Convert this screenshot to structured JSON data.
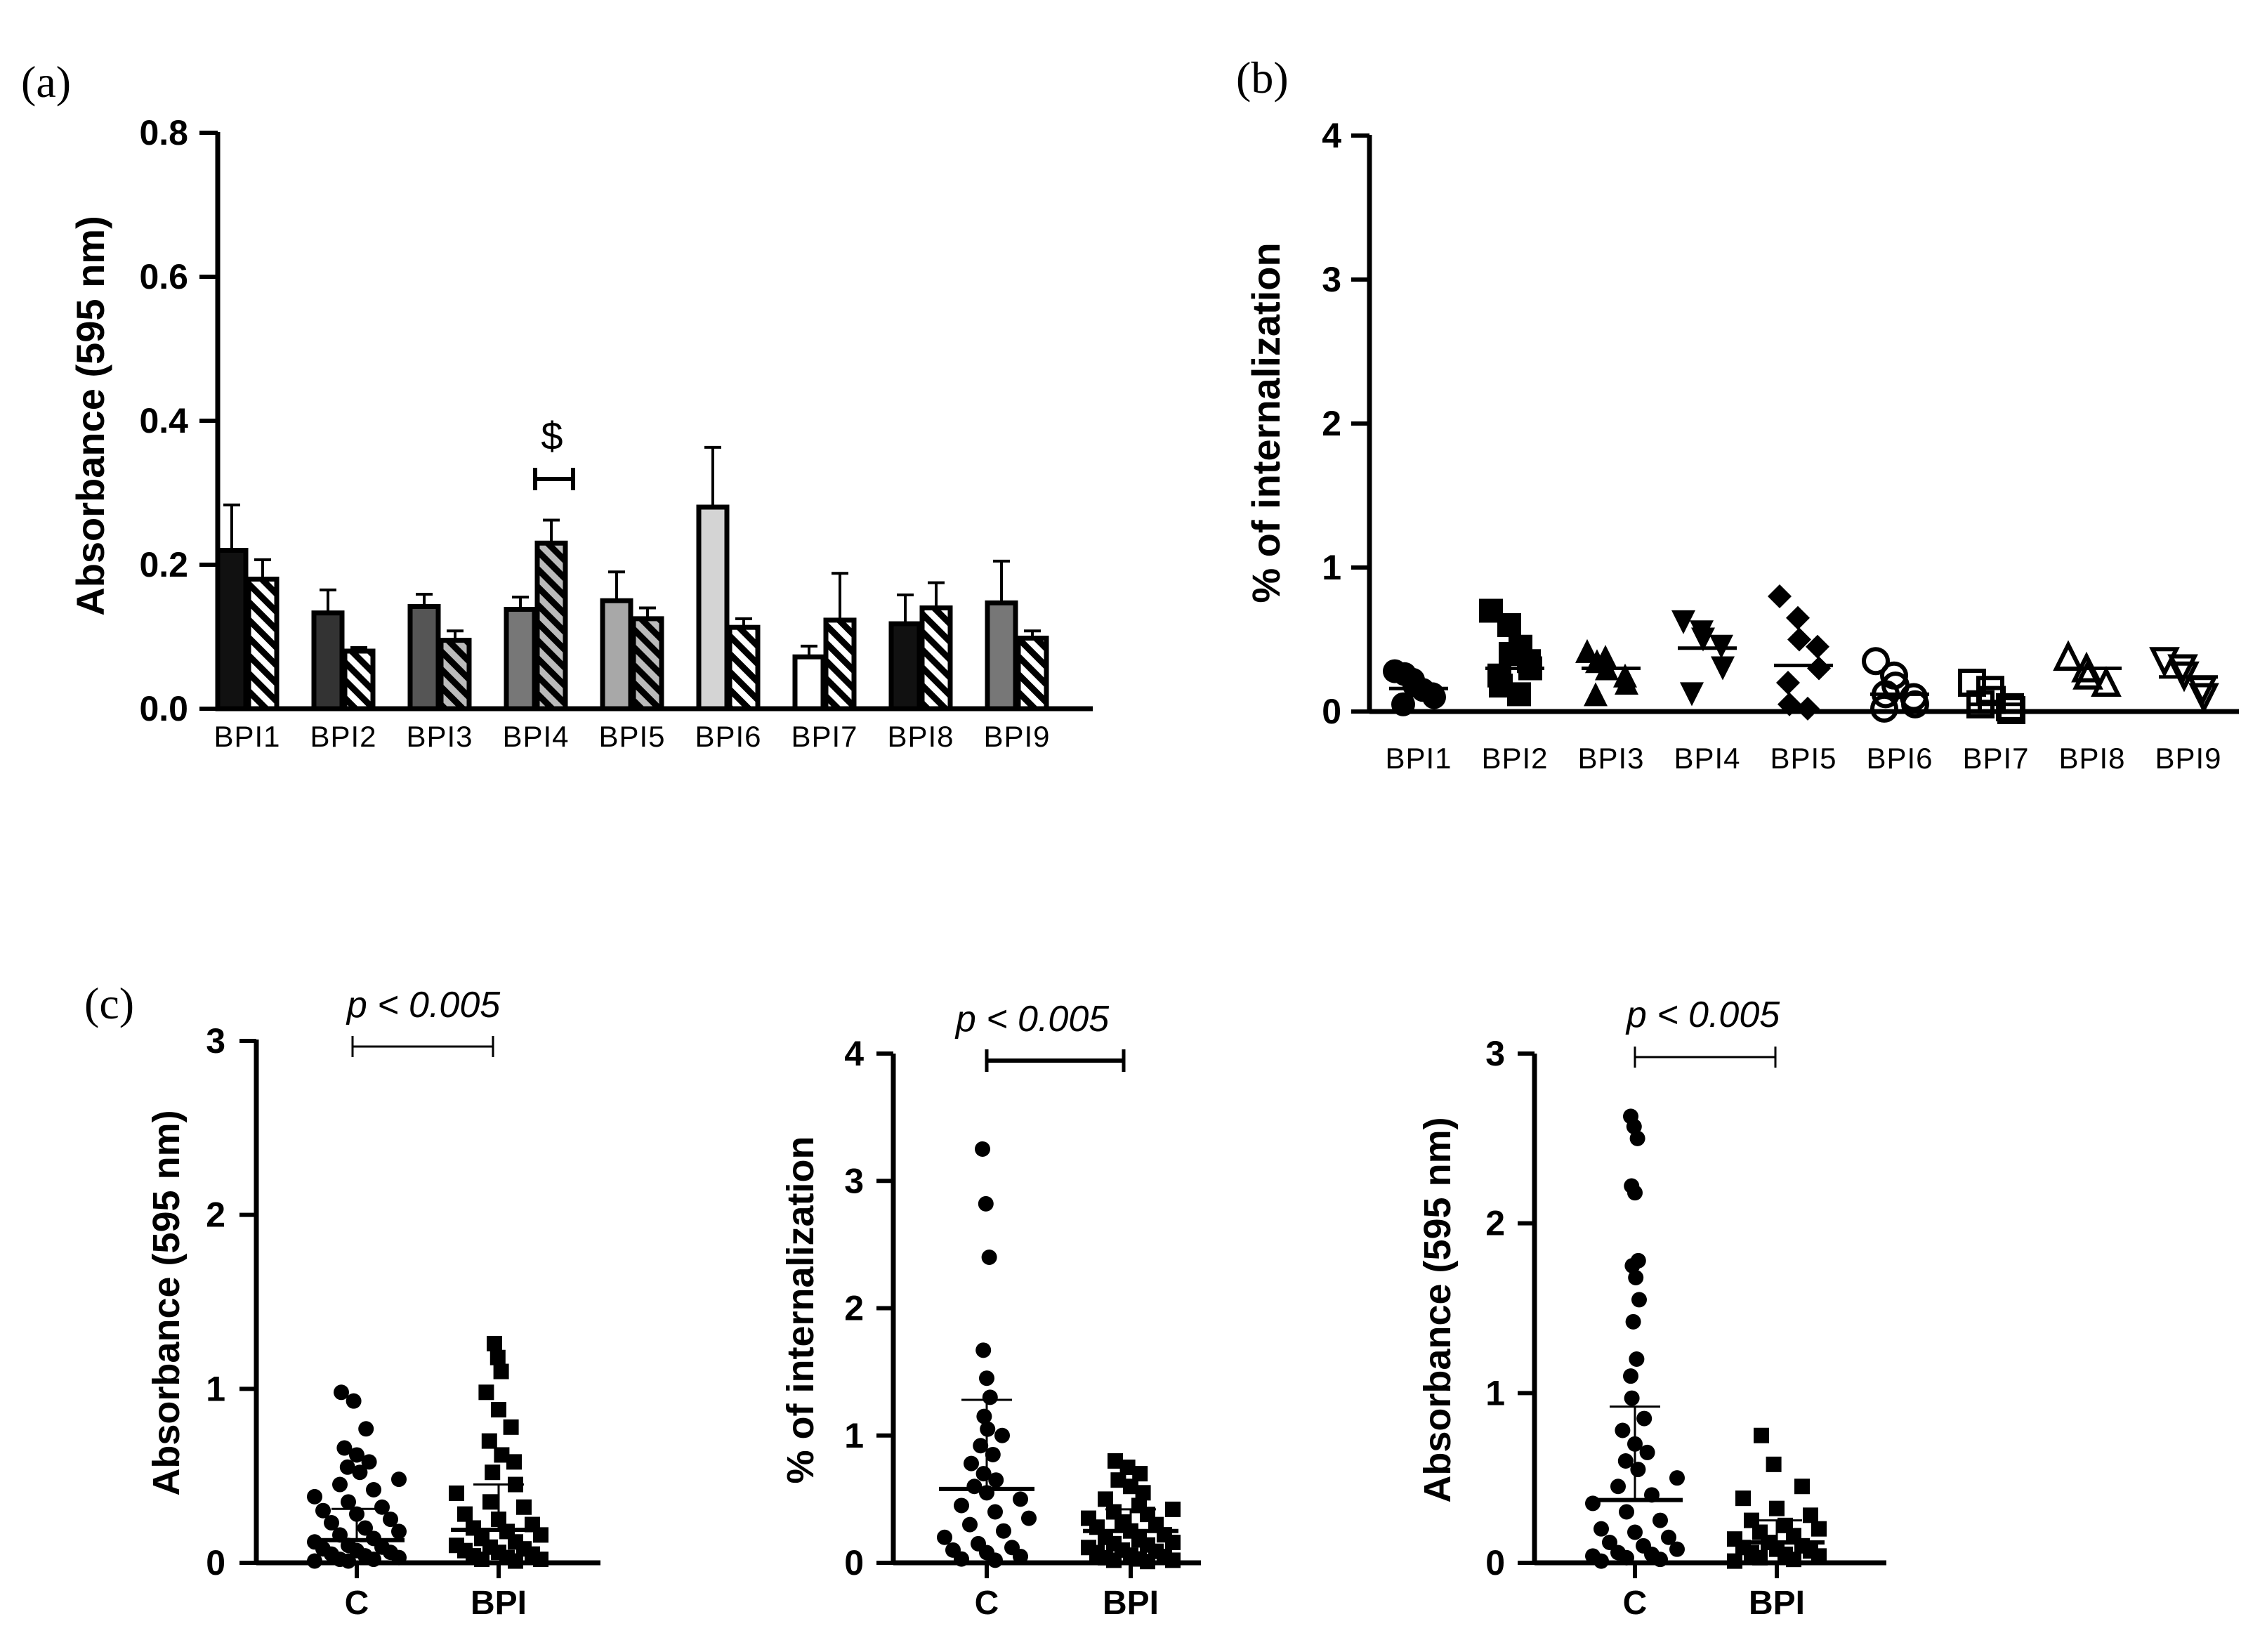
{
  "panel_labels": {
    "a": "(a)",
    "b": "(b)",
    "c": "(c)"
  },
  "chart_data": [
    {
      "id": "a",
      "type": "bar",
      "ylabel": "Absorbance (595 nm)",
      "ylim": [
        0,
        0.8
      ],
      "yticks": [
        "0.0",
        "0.2",
        "0.4",
        "0.6",
        "0.8"
      ],
      "categories": [
        "BPI1",
        "BPI2",
        "BPI3",
        "BPI4",
        "BPI5",
        "BPI6",
        "BPI7",
        "BPI8",
        "BPI9"
      ],
      "series": [
        {
          "name": "solid",
          "values": [
            0.22,
            0.133,
            0.142,
            0.138,
            0.15,
            0.28,
            0.072,
            0.118,
            0.147
          ],
          "errors": [
            0.063,
            0.032,
            0.017,
            0.017,
            0.04,
            0.083,
            0.015,
            0.04,
            0.058
          ],
          "colors": [
            "#111111",
            "#333333",
            "#555555",
            "#777777",
            "#a8a8a8",
            "#d4d4d4",
            "#ffffff",
            "#111111",
            "#777777"
          ]
        },
        {
          "name": "hatched",
          "values": [
            0.18,
            0.08,
            0.095,
            0.23,
            0.125,
            0.113,
            0.123,
            0.14,
            0.098
          ],
          "errors": [
            0.027,
            0.005,
            0.013,
            0.032,
            0.015,
            0.012,
            0.065,
            0.035,
            0.01
          ],
          "colors": [
            "#ffffff",
            "#ffffff",
            "#bbbbbb",
            "#bbbbbb",
            "#cccccc",
            "#ffffff",
            "#ffffff",
            "#ffffff",
            "#ffffff"
          ]
        }
      ],
      "annotation": "$"
    },
    {
      "id": "b",
      "type": "scatter",
      "ylabel": "% of internalization",
      "ylim": [
        0,
        4
      ],
      "yticks": [
        "0",
        "1",
        "2",
        "3",
        "4"
      ],
      "categories": [
        "BPI1",
        "BPI2",
        "BPI3",
        "BPI4",
        "BPI5",
        "BPI6",
        "BPI7",
        "BPI8",
        "BPI9"
      ],
      "markers": [
        "circle",
        "square",
        "triangle",
        "triangle-down",
        "diamond",
        "circle-open",
        "square-open",
        "triangle-open",
        "triangle-down-open"
      ],
      "points": [
        [
          0.28,
          0.22,
          0.18,
          0.12,
          0.1,
          0.05,
          0.26,
          0.15
        ],
        [
          0.7,
          0.6,
          0.4,
          0.35,
          0.3,
          0.25,
          0.18,
          0.12,
          0.45
        ],
        [
          0.42,
          0.38,
          0.3,
          0.25,
          0.2,
          0.12,
          0.35
        ],
        [
          0.62,
          0.55,
          0.5,
          0.45,
          0.3,
          0.12
        ],
        [
          0.8,
          0.65,
          0.5,
          0.45,
          0.3,
          0.2,
          0.05,
          0.02
        ],
        [
          0.35,
          0.25,
          0.18,
          0.1,
          0.05,
          0.02,
          0.12
        ],
        [
          0.2,
          0.15,
          0.08,
          0.03,
          0.01,
          0.05
        ],
        [
          0.38,
          0.3,
          0.25,
          0.2
        ],
        [
          0.35,
          0.3,
          0.25,
          0.15,
          0.1
        ]
      ],
      "means": [
        0.16,
        0.3,
        0.3,
        0.44,
        0.32,
        0.12,
        0.05,
        0.3,
        0.24
      ]
    },
    {
      "id": "c1",
      "type": "scatter",
      "ylabel": "Absorbance (595 nm)",
      "ylim": [
        0,
        3
      ],
      "yticks": [
        "0",
        "1",
        "2",
        "3"
      ],
      "categories": [
        "C",
        "BPI"
      ],
      "pvalue": "p < 0.005",
      "means": [
        0.13,
        0.19
      ],
      "sd_upper": [
        0.31,
        0.45
      ],
      "points": [
        [
          0.98,
          0.93,
          0.77,
          0.66,
          0.62,
          0.58,
          0.55,
          0.52,
          0.48,
          0.45,
          0.42,
          0.38,
          0.35,
          0.32,
          0.3,
          0.28,
          0.25,
          0.23,
          0.2,
          0.18,
          0.16,
          0.14,
          0.12,
          0.1,
          0.09,
          0.08,
          0.07,
          0.06,
          0.05,
          0.04,
          0.03,
          0.02,
          0.02,
          0.01,
          0.01
        ],
        [
          1.26,
          1.18,
          1.1,
          0.98,
          0.88,
          0.78,
          0.7,
          0.62,
          0.58,
          0.52,
          0.45,
          0.4,
          0.35,
          0.32,
          0.28,
          0.25,
          0.22,
          0.2,
          0.18,
          0.16,
          0.14,
          0.12,
          0.1,
          0.09,
          0.08,
          0.07,
          0.06,
          0.05,
          0.04,
          0.03,
          0.02,
          0.02,
          0.01
        ]
      ]
    },
    {
      "id": "c2",
      "type": "scatter",
      "ylabel": "% of internalization",
      "ylim": [
        0,
        4
      ],
      "yticks": [
        "0",
        "1",
        "2",
        "3",
        "4"
      ],
      "categories": [
        "C",
        "BPI"
      ],
      "pvalue": "p < 0.005",
      "means": [
        0.58,
        0.25
      ],
      "sd_upper": [
        1.28,
        0.42
      ],
      "points": [
        [
          3.25,
          2.82,
          2.4,
          1.67,
          1.45,
          1.3,
          1.15,
          1.05,
          1.0,
          0.92,
          0.85,
          0.78,
          0.7,
          0.65,
          0.6,
          0.55,
          0.5,
          0.45,
          0.4,
          0.35,
          0.3,
          0.25,
          0.2,
          0.15,
          0.12,
          0.1,
          0.08,
          0.05,
          0.03,
          0.02
        ],
        [
          0.8,
          0.75,
          0.7,
          0.65,
          0.6,
          0.55,
          0.5,
          0.45,
          0.42,
          0.4,
          0.38,
          0.35,
          0.32,
          0.3,
          0.28,
          0.25,
          0.22,
          0.2,
          0.18,
          0.16,
          0.15,
          0.14,
          0.12,
          0.1,
          0.09,
          0.08,
          0.06,
          0.05,
          0.04,
          0.03,
          0.02,
          0.02,
          0.01
        ]
      ]
    },
    {
      "id": "c3",
      "type": "scatter",
      "ylabel": "Absorbance (595 nm)",
      "ylim": [
        0,
        3
      ],
      "yticks": [
        "0",
        "1",
        "2",
        "3"
      ],
      "categories": [
        "C",
        "BPI"
      ],
      "pvalue": "p < 0.005",
      "means": [
        0.37,
        0.12
      ],
      "sd_upper": [
        0.92,
        0.25
      ],
      "points": [
        [
          2.63,
          2.57,
          2.5,
          2.22,
          2.18,
          1.78,
          1.75,
          1.68,
          1.55,
          1.42,
          1.2,
          1.1,
          0.97,
          0.85,
          0.78,
          0.7,
          0.65,
          0.6,
          0.55,
          0.5,
          0.45,
          0.4,
          0.35,
          0.3,
          0.25,
          0.2,
          0.18,
          0.15,
          0.12,
          0.1,
          0.08,
          0.06,
          0.05,
          0.04,
          0.03,
          0.02,
          0.01
        ],
        [
          0.75,
          0.58,
          0.45,
          0.38,
          0.32,
          0.28,
          0.25,
          0.22,
          0.2,
          0.18,
          0.16,
          0.14,
          0.12,
          0.1,
          0.09,
          0.08,
          0.07,
          0.06,
          0.05,
          0.04,
          0.03,
          0.02,
          0.01
        ]
      ]
    }
  ]
}
